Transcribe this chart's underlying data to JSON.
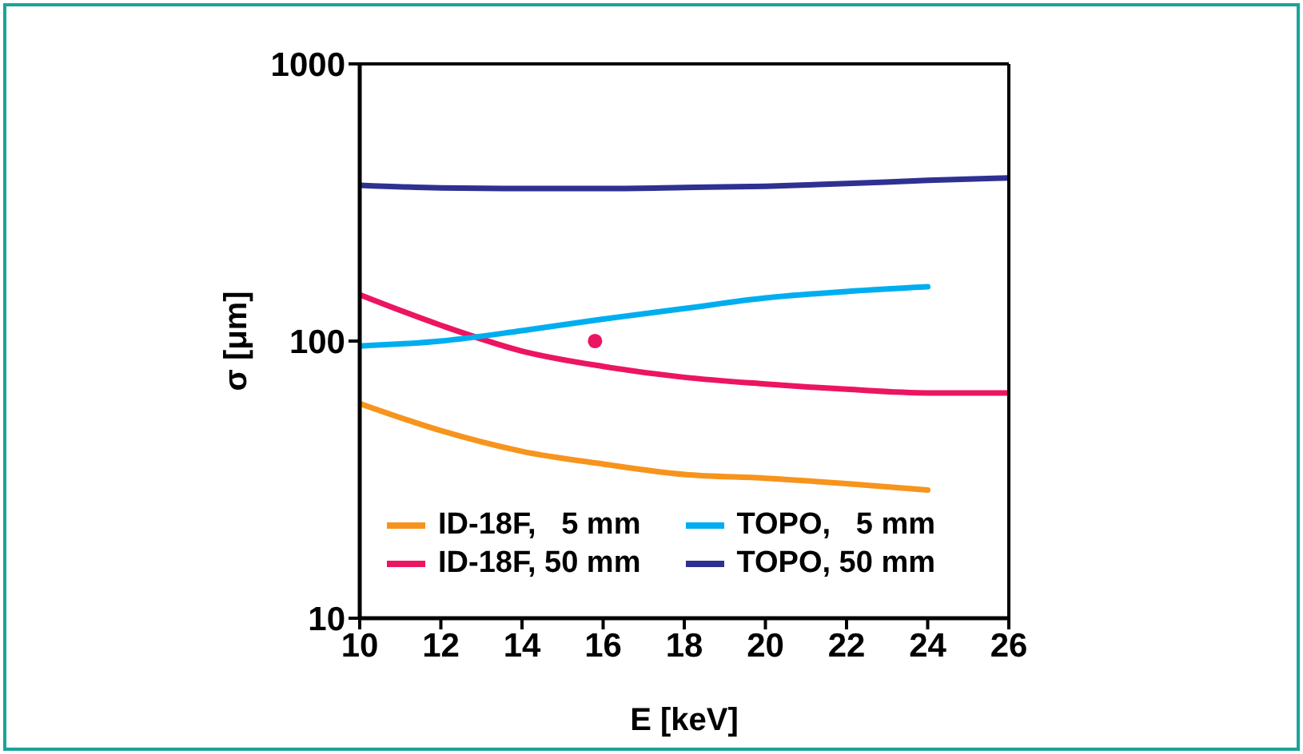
{
  "chart_data": {
    "type": "line",
    "xlabel": "E [keV]",
    "ylabel": "σ [μm]",
    "log": "y",
    "xlim": [
      10,
      26
    ],
    "xticks": [
      10,
      12,
      14,
      16,
      18,
      20,
      22,
      24,
      26
    ],
    "ylim": [
      10,
      1000
    ],
    "yticks": [
      10,
      100,
      1000
    ],
    "grid": false,
    "legend": "bottom left",
    "marker": "none",
    "line_style": "solid",
    "series": [
      {
        "name": "ID-18F,   5 mm",
        "color": "#f7941d",
        "x": [
          10,
          12,
          14,
          16,
          18,
          20,
          22,
          24
        ],
        "values": [
          59.5,
          47.5,
          40,
          36,
          33,
          32,
          30.6,
          29
        ]
      },
      {
        "name": "ID-18F, 50 mm",
        "color": "#ec1561",
        "x": [
          10,
          12,
          14,
          16,
          18,
          20,
          22,
          24,
          26
        ],
        "values": [
          147,
          114,
          92,
          81,
          74,
          70,
          67,
          65,
          65
        ]
      },
      {
        "name": "TOPO,   5 mm",
        "color": "#00aeef",
        "x": [
          10,
          12,
          14,
          16,
          18,
          20,
          22,
          24
        ],
        "values": [
          96,
          100,
          109,
          120,
          131,
          143,
          151,
          157
        ]
      },
      {
        "name": "TOPO, 50 mm",
        "color": "#2e3192",
        "x": [
          10,
          12,
          14,
          16,
          18,
          20,
          22,
          24,
          26
        ],
        "values": [
          365,
          357,
          355,
          355,
          358,
          362,
          370,
          380,
          388
        ]
      },
      {
        "type": "scatter",
        "marker": "circle",
        "color": "#ec1561",
        "x": [
          15.8
        ],
        "values": [
          100
        ]
      }
    ]
  }
}
